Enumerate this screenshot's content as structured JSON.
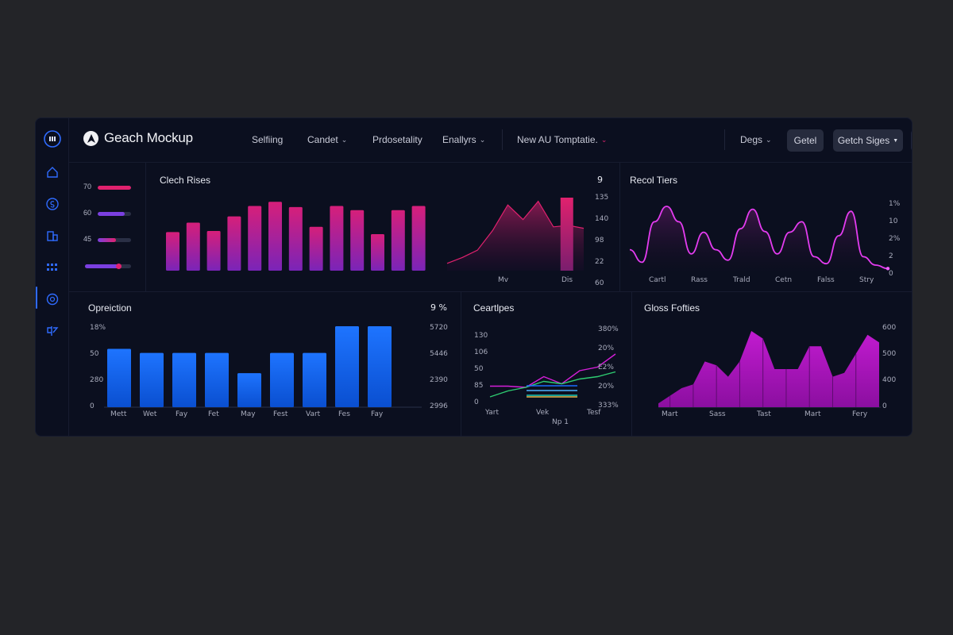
{
  "app": {
    "title": "Geach Mockup"
  },
  "nav": [
    {
      "label": "Selfiing",
      "chevron": false
    },
    {
      "label": "Candet",
      "chevron": true
    },
    {
      "label": "Prdosetality",
      "chevron": false
    },
    {
      "label": "Enallyrs",
      "chevron": true
    },
    {
      "label": "New AU Tomptatie.",
      "chevron": true
    }
  ],
  "toolbar": {
    "dropdown_label": "Degs",
    "button1_label": "Getel",
    "button2_label": "Getch Siges"
  },
  "sidebar": {
    "icons": [
      "grid-icon",
      "home-icon",
      "coin-icon",
      "building-icon",
      "apps-icon",
      "history-icon",
      "chart-split-icon"
    ],
    "active_index": 5
  },
  "sliders": [
    {
      "label": "70",
      "fraction": 1.0,
      "color": "#e0216e"
    },
    {
      "label": "60",
      "fraction": 0.82,
      "color": "#7b3fe0"
    },
    {
      "label": "45",
      "fraction": 0.55,
      "color": "#7b3fe0",
      "color2": "#e0216e"
    },
    {
      "label": "",
      "fraction": 0.72,
      "color": "#7b3fe0",
      "knob": "#e0216e"
    }
  ],
  "colors": {
    "accent": "#2f6bff",
    "magenta": "#e0216e",
    "purple": "#8a2be2",
    "blue": "#1a6dff",
    "green": "#2ecc71"
  },
  "chart_data": [
    {
      "type": "bar",
      "title": "Clech Rises",
      "corner_label": "9",
      "values": [
        37,
        46,
        38,
        52,
        62,
        66,
        61,
        42,
        62,
        58,
        35,
        58,
        62
      ]
    },
    {
      "type": "area",
      "x_labels": [
        "Mv",
        "Dis"
      ],
      "y_labels": [
        "135",
        "140",
        "98",
        "22",
        "60"
      ],
      "values": [
        10,
        18,
        28,
        55,
        90,
        70,
        95,
        60,
        62,
        58
      ],
      "highlight_value": 100
    },
    {
      "type": "line",
      "title": "Recol Tiers",
      "x_labels": [
        "Cartl",
        "Rass",
        "Trald",
        "Cetn",
        "Falss",
        "Stry"
      ],
      "y_labels": [
        "1%",
        "10",
        "2%",
        "2",
        "0"
      ],
      "values": [
        30,
        12,
        70,
        92,
        70,
        24,
        55,
        30,
        15,
        60,
        88,
        56,
        24,
        55,
        70,
        20,
        10,
        50,
        85,
        20,
        8,
        3
      ]
    },
    {
      "type": "bar",
      "title": "Opreiction",
      "corner_label": "9 %",
      "categories": [
        "Mett",
        "Wet",
        "Fay",
        "Fet",
        "May",
        "Fest",
        "Vart",
        "Fes",
        "Fay"
      ],
      "values": [
        72,
        67,
        67,
        67,
        42,
        67,
        67,
        100,
        100
      ],
      "y_labels_left": [
        "18%",
        "50",
        "280",
        "0"
      ],
      "y_labels_right": [
        "5720",
        "5446",
        "2390",
        "2996"
      ]
    },
    {
      "type": "line",
      "title": "Ceartlpes",
      "x_labels": [
        "Yart",
        "Vek",
        "Tesf"
      ],
      "x_sub_label": "Np 1",
      "y_labels_left": [
        "130",
        "106",
        "50",
        "85",
        "0"
      ],
      "y_labels_right": [
        "380%",
        "20%",
        "E2%",
        "20%",
        "333%"
      ],
      "series": [
        {
          "values": [
            18,
            18,
            16,
            34,
            22,
            44,
            50,
            72
          ],
          "color": "#d61fd9"
        },
        {
          "values": [
            0,
            10,
            16,
            26,
            22,
            30,
            34,
            42
          ],
          "color": "#2ecc71"
        },
        {
          "values": [
            24,
            24
          ],
          "color": "#1a6dff"
        },
        {
          "values": [
            16,
            16
          ],
          "color": "#4fb3ff"
        },
        {
          "values": [
            8,
            8
          ],
          "color": "#16c9b7"
        },
        {
          "values": [
            0,
            0
          ],
          "color": "#e8b84a"
        }
      ]
    },
    {
      "type": "area",
      "title": "Gloss Fofties",
      "x_labels": [
        "Mart",
        "Sass",
        "Tast",
        "Mart",
        "Fery"
      ],
      "y_labels": [
        "600",
        "500",
        "400",
        "0"
      ],
      "values": [
        5,
        15,
        25,
        30,
        60,
        55,
        40,
        60,
        100,
        90,
        50,
        50,
        50,
        80,
        80,
        40,
        45,
        70,
        95,
        85
      ]
    }
  ]
}
